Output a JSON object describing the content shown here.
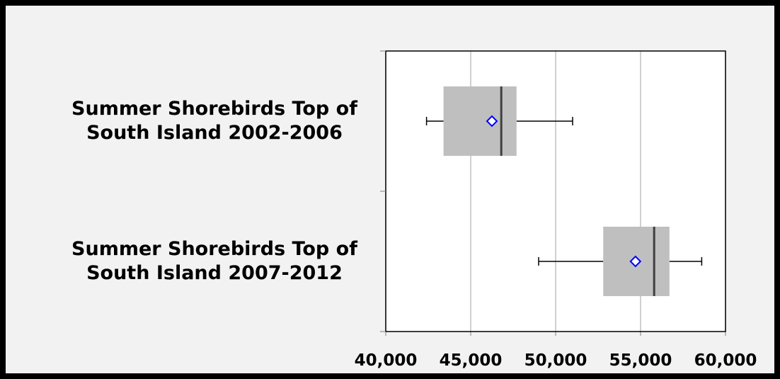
{
  "chart_data": {
    "type": "boxplot",
    "orientation": "horizontal",
    "categories": [
      "Summer Shorebirds Top of South Island 2002-2006",
      "Summer Shorebirds Top of South Island 2007-2012"
    ],
    "boxes": [
      {
        "min": 42400,
        "q1": 43400,
        "median": 46800,
        "q3": 47700,
        "max": 51000,
        "mean": 46250
      },
      {
        "min": 49000,
        "q1": 52800,
        "median": 55800,
        "q3": 56700,
        "max": 58600,
        "mean": 54700
      }
    ],
    "box_color": "#bfbfbf",
    "median_color": "#404040",
    "mean_color": "#0000ff",
    "xlim": [
      40000,
      60000
    ],
    "xticks": [
      {
        "value": 40000,
        "label": "40,000"
      },
      {
        "value": 45000,
        "label": "45,000"
      },
      {
        "value": 50000,
        "label": "50,000"
      },
      {
        "value": 55000,
        "label": "55,000"
      },
      {
        "value": 60000,
        "label": "60,000"
      }
    ],
    "grid": true
  }
}
